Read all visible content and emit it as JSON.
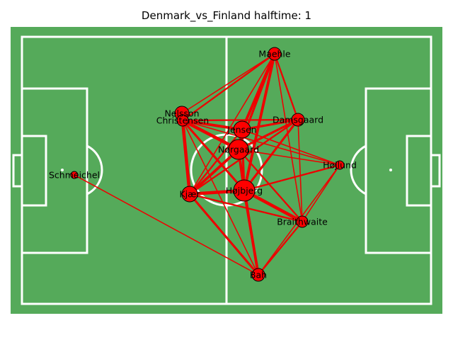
{
  "title": "Denmark_vs_Finland halftime: 1",
  "colors": {
    "pitch": "#55aa5a",
    "lines": "#ffffff",
    "node": "#ff0000",
    "edge": "#ee0000"
  },
  "players": [
    {
      "id": "maehle",
      "name": "Maehle"
    },
    {
      "id": "nelsson",
      "name": "Nelsson"
    },
    {
      "id": "christensen",
      "name": "Christensen"
    },
    {
      "id": "jensen",
      "name": "Jensen"
    },
    {
      "id": "damsgaard",
      "name": "Damsgaard"
    },
    {
      "id": "norgaard",
      "name": "Nørgaard"
    },
    {
      "id": "hojlund",
      "name": "Højlund"
    },
    {
      "id": "schmeichel",
      "name": "Schmeichel"
    },
    {
      "id": "kjaer",
      "name": "Kjær"
    },
    {
      "id": "hojbjerg",
      "name": "Højbjerg"
    },
    {
      "id": "braithwaite",
      "name": "Braithwaite"
    },
    {
      "id": "bah",
      "name": "Bah"
    }
  ],
  "passes": [
    {
      "from": "maehle",
      "to": "jensen",
      "count": 4
    },
    {
      "from": "maehle",
      "to": "damsgaard",
      "count": 2
    },
    {
      "from": "maehle",
      "to": "norgaard",
      "count": 3
    },
    {
      "from": "maehle",
      "to": "hojbjerg",
      "count": 4
    },
    {
      "from": "maehle",
      "to": "nelsson",
      "count": 1
    },
    {
      "from": "maehle",
      "to": "christensen",
      "count": 2
    },
    {
      "from": "maehle",
      "to": "kjaer",
      "count": 1
    },
    {
      "from": "maehle",
      "to": "braithwaite",
      "count": 1
    },
    {
      "from": "christensen",
      "to": "jensen",
      "count": 4
    },
    {
      "from": "christensen",
      "to": "norgaard",
      "count": 5
    },
    {
      "from": "christensen",
      "to": "kjaer",
      "count": 5
    },
    {
      "from": "christensen",
      "to": "hojbjerg",
      "count": 3
    },
    {
      "from": "christensen",
      "to": "damsgaard",
      "count": 2
    },
    {
      "from": "christensen",
      "to": "bah",
      "count": 1
    },
    {
      "from": "christensen",
      "to": "hojlund",
      "count": 1
    },
    {
      "from": "jensen",
      "to": "damsgaard",
      "count": 3
    },
    {
      "from": "jensen",
      "to": "norgaard",
      "count": 4
    },
    {
      "from": "jensen",
      "to": "hojbjerg",
      "count": 3
    },
    {
      "from": "jensen",
      "to": "kjaer",
      "count": 2
    },
    {
      "from": "jensen",
      "to": "hojlund",
      "count": 1
    },
    {
      "from": "damsgaard",
      "to": "norgaard",
      "count": 3
    },
    {
      "from": "damsgaard",
      "to": "hojbjerg",
      "count": 3
    },
    {
      "from": "damsgaard",
      "to": "braithwaite",
      "count": 1
    },
    {
      "from": "damsgaard",
      "to": "kjaer",
      "count": 2
    },
    {
      "from": "norgaard",
      "to": "hojbjerg",
      "count": 4
    },
    {
      "from": "norgaard",
      "to": "kjaer",
      "count": 4
    },
    {
      "from": "norgaard",
      "to": "hojlund",
      "count": 1
    },
    {
      "from": "norgaard",
      "to": "braithwaite",
      "count": 2
    },
    {
      "from": "norgaard",
      "to": "bah",
      "count": 2
    },
    {
      "from": "kjaer",
      "to": "hojbjerg",
      "count": 5
    },
    {
      "from": "kjaer",
      "to": "bah",
      "count": 3
    },
    {
      "from": "kjaer",
      "to": "braithwaite",
      "count": 2
    },
    {
      "from": "hojbjerg",
      "to": "braithwaite",
      "count": 5
    },
    {
      "from": "hojbjerg",
      "to": "bah",
      "count": 4
    },
    {
      "from": "hojbjerg",
      "to": "hojlund",
      "count": 2
    },
    {
      "from": "braithwaite",
      "to": "bah",
      "count": 2
    },
    {
      "from": "braithwaite",
      "to": "hojlund",
      "count": 1
    },
    {
      "from": "bah",
      "to": "hojlund",
      "count": 1
    },
    {
      "from": "schmeichel",
      "to": "bah",
      "count": 1
    }
  ]
}
